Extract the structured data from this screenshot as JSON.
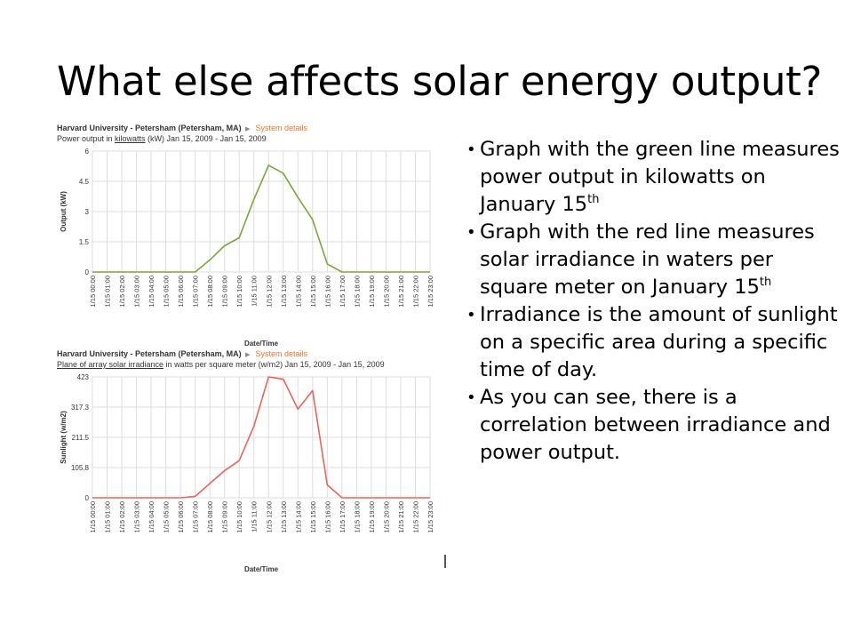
{
  "slide": {
    "title": "What else affects solar energy output?"
  },
  "bullets": [
    {
      "text": "Graph with the green line measures power output in kilowatts on January 15",
      "sup": "th"
    },
    {
      "text": "Graph with the red line measures solar irradiance in waters per square meter on January 15",
      "sup": "th"
    },
    {
      "text": "Irradiance is the amount of sunlight on a specific area during a specific time of day.",
      "sup": ""
    },
    {
      "text": "As you can see, there is a correlation between irradiance and power output.",
      "sup": ""
    }
  ],
  "chart_data": [
    {
      "type": "line",
      "site": "Harvard University - Petersham (Petersham, MA)",
      "system_link": "System details",
      "subtitle_pre": "Power output in ",
      "subtitle_link": "kilowatts",
      "subtitle_post": " (kW) Jan 15, 2009 - Jan 15, 2009",
      "xlabel": "Date/Time",
      "ylabel": "Output (kW)",
      "color": "#7aa63a",
      "grid": true,
      "ylim": [
        0,
        6
      ],
      "yticks": [
        "0",
        "1.5",
        "3",
        "4.5",
        "6"
      ],
      "categories": [
        "1/15 00:00",
        "1/15 01:00",
        "1/15 02:00",
        "1/15 03:00",
        "1/15 04:00",
        "1/15 05:00",
        "1/15 06:00",
        "1/15 07:00",
        "1/15 08:00",
        "1/15 09:00",
        "1/15 10:00",
        "1/15 11:00",
        "1/15 12:00",
        "1/15 13:00",
        "1/15 14:00",
        "1/15 15:00",
        "1/15 16:00",
        "1/15 17:00",
        "1/15 18:00",
        "1/15 19:00",
        "1/15 20:00",
        "1/15 21:00",
        "1/15 22:00",
        "1/15 23:00"
      ],
      "values": [
        0,
        0,
        0,
        0,
        0,
        0,
        0,
        0,
        0.6,
        1.3,
        1.7,
        3.6,
        5.3,
        4.9,
        3.7,
        2.6,
        0.4,
        0,
        0,
        0,
        0,
        0,
        0,
        0
      ]
    },
    {
      "type": "line",
      "site": "Harvard University - Petersham (Petersham, MA)",
      "system_link": "System details",
      "subtitle_pre": "",
      "subtitle_link": "Plane of array solar irradiance",
      "subtitle_post": " in watts per square meter (w/m2) Jan 15, 2009 - Jan 15, 2009",
      "xlabel": "Date/Time",
      "ylabel": "Sunlight (w/m2)",
      "color": "#e8665a",
      "grid": true,
      "ylim": [
        0,
        423
      ],
      "yticks": [
        "0",
        "105.8",
        "211.5",
        "317.3",
        "423"
      ],
      "categories": [
        "1/15 00:00",
        "1/15 01:00",
        "1/15 02:00",
        "1/15 03:00",
        "1/15 04:00",
        "1/15 05:00",
        "1/15 06:00",
        "1/15 07:00",
        "1/15 08:00",
        "1/15 09:00",
        "1/15 10:00",
        "1/15 11:00",
        "1/15 12:00",
        "1/15 13:00",
        "1/15 14:00",
        "1/15 15:00",
        "1/15 16:00",
        "1/15 17:00",
        "1/15 18:00",
        "1/15 19:00",
        "1/15 20:00",
        "1/15 21:00",
        "1/15 22:00",
        "1/15 23:00"
      ],
      "values": [
        0,
        0,
        0,
        0,
        0,
        0,
        0,
        5,
        50,
        95,
        130,
        250,
        423,
        415,
        310,
        375,
        45,
        0,
        0,
        0,
        0,
        0,
        0,
        0
      ]
    }
  ]
}
